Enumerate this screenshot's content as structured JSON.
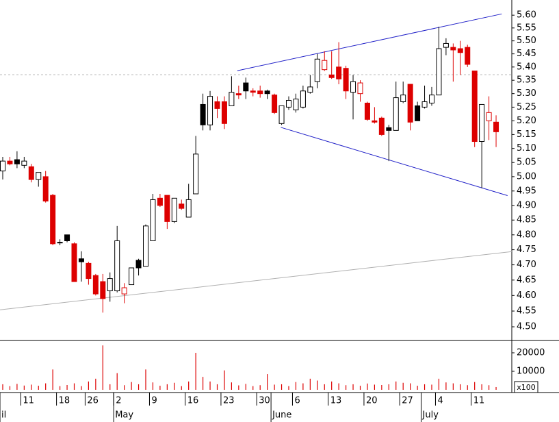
{
  "chart_data": [
    {
      "type": "candlestick",
      "log_scale": true,
      "categories": [
        null,
        null,
        null,
        "11",
        null,
        null,
        null,
        null,
        "18",
        null,
        null,
        null,
        "26",
        null,
        null,
        null,
        "2",
        null,
        null,
        null,
        null,
        "9",
        null,
        null,
        null,
        null,
        "16",
        null,
        null,
        null,
        null,
        "23",
        null,
        null,
        null,
        null,
        "30",
        null,
        null,
        null,
        null,
        "6",
        null,
        null,
        null,
        null,
        "13",
        null,
        null,
        null,
        null,
        "20",
        null,
        null,
        null,
        null,
        "27",
        null,
        null,
        null,
        null,
        "4",
        null,
        null,
        null,
        null,
        "11",
        null,
        null,
        null
      ],
      "months": [
        {
          "label": "il",
          "category": 0
        },
        {
          "label": "May",
          "category": 16
        },
        {
          "label": "June",
          "category": 38
        },
        {
          "label": "July",
          "category": 59
        }
      ],
      "open": [
        5.02,
        5.055,
        5.06,
        5.04,
        5.035,
        4.99,
        5.0,
        4.935,
        4.775,
        4.8,
        4.77,
        4.72,
        4.705,
        4.665,
        4.645,
        4.615,
        4.615,
        4.605,
        4.635,
        4.715,
        4.695,
        4.78,
        4.925,
        4.935,
        4.845,
        4.905,
        4.86,
        4.94,
        5.26,
        5.185,
        5.27,
        5.27,
        5.255,
        5.3,
        5.34,
        5.31,
        5.31,
        5.31,
        5.295,
        5.19,
        5.25,
        5.24,
        5.25,
        5.305,
        5.345,
        5.39,
        5.37,
        5.4,
        5.395,
        5.305,
        5.3,
        5.265,
        5.2,
        5.21,
        5.175,
        5.165,
        5.27,
        5.335,
        5.255,
        5.25,
        5.265,
        5.295,
        5.475,
        5.475,
        5.47,
        5.475,
        5.385,
        5.125,
        5.2,
        5.195
      ],
      "high": [
        5.07,
        5.07,
        5.09,
        5.07,
        5.045,
        5.015,
        5.02,
        4.94,
        4.785,
        4.8,
        4.775,
        4.745,
        4.71,
        4.67,
        4.67,
        4.675,
        4.83,
        4.64,
        4.69,
        4.72,
        4.835,
        4.94,
        4.94,
        4.935,
        4.925,
        4.92,
        4.975,
        5.145,
        5.3,
        5.31,
        5.29,
        5.29,
        5.365,
        5.33,
        5.36,
        5.32,
        5.33,
        5.315,
        5.3,
        5.255,
        5.29,
        5.3,
        5.33,
        5.37,
        5.45,
        5.46,
        5.46,
        5.495,
        5.405,
        5.37,
        5.35,
        5.27,
        5.25,
        5.215,
        5.185,
        5.345,
        5.345,
        5.335,
        5.27,
        5.33,
        5.325,
        5.555,
        5.51,
        5.49,
        5.5,
        5.485,
        5.385,
        5.26,
        5.29,
        5.22
      ],
      "low": [
        4.99,
        5.04,
        5.03,
        5.03,
        4.98,
        4.965,
        4.91,
        4.765,
        4.765,
        4.775,
        4.645,
        4.645,
        4.635,
        4.6,
        4.545,
        4.58,
        4.61,
        4.575,
        4.635,
        4.665,
        4.695,
        4.78,
        4.895,
        4.82,
        4.84,
        4.885,
        4.86,
        4.94,
        5.165,
        5.165,
        5.21,
        5.17,
        5.255,
        5.28,
        5.28,
        5.29,
        5.285,
        5.28,
        5.225,
        5.185,
        5.24,
        5.23,
        5.245,
        5.3,
        5.32,
        5.385,
        5.355,
        5.335,
        5.28,
        5.205,
        5.27,
        5.2,
        5.19,
        5.145,
        5.055,
        5.165,
        5.265,
        5.165,
        5.2,
        5.245,
        5.255,
        5.295,
        5.445,
        5.345,
        5.37,
        5.4,
        5.105,
        4.96,
        5.13,
        5.105
      ],
      "close": [
        5.055,
        5.045,
        5.045,
        5.055,
        4.99,
        5.015,
        4.915,
        4.77,
        4.775,
        4.78,
        4.645,
        4.71,
        4.655,
        4.605,
        4.59,
        4.655,
        4.78,
        4.625,
        4.69,
        4.69,
        4.83,
        4.92,
        4.9,
        4.845,
        4.925,
        4.89,
        4.92,
        5.08,
        5.185,
        5.29,
        5.245,
        5.19,
        5.305,
        5.295,
        5.31,
        5.305,
        5.3,
        5.3,
        5.23,
        5.255,
        5.275,
        5.28,
        5.31,
        5.325,
        5.43,
        5.425,
        5.36,
        5.355,
        5.31,
        5.345,
        5.34,
        5.205,
        5.195,
        5.15,
        5.165,
        5.285,
        5.295,
        5.195,
        5.2,
        5.27,
        5.295,
        5.47,
        5.49,
        5.465,
        5.455,
        5.41,
        5.125,
        5.26,
        5.23,
        5.16
      ],
      "up_color": "#ffffff",
      "down_color": "#dd0000",
      "hold_color": "#000000",
      "ylim": [
        4.457,
        5.66
      ],
      "yticks": [
        {
          "value": 4.5,
          "label": "4.50"
        },
        4.55,
        {
          "value": 4.6,
          "label": "4.60"
        },
        4.65,
        {
          "value": 4.7,
          "label": "4.70"
        },
        4.75,
        {
          "value": 4.8,
          "label": "4.80"
        },
        4.85,
        {
          "value": 4.9,
          "label": "4.90"
        },
        4.95,
        {
          "value": 5.0,
          "label": "5.00"
        },
        5.05,
        {
          "value": 5.1,
          "label": "5.10"
        },
        5.15,
        {
          "value": 5.2,
          "label": "5.20"
        },
        5.25,
        {
          "value": 5.3,
          "label": "5.30"
        },
        5.35,
        {
          "value": 5.4,
          "label": "5.40"
        },
        5.45,
        {
          "value": 5.5,
          "label": "5.50"
        },
        5.55,
        {
          "value": 5.6,
          "label": "5.60"
        }
      ],
      "trendlines": [
        {
          "color": "#2020c8",
          "x": [
            32.8,
            69.8
          ],
          "y": [
            5.386,
            5.605
          ]
        },
        {
          "color": "#2020c8",
          "x": [
            38.9,
            70.6
          ],
          "y": [
            5.176,
            4.934
          ]
        },
        {
          "color": "#b0b0b0",
          "x": [
            -0.38,
            71.2
          ],
          "y": [
            4.554,
            4.744
          ]
        }
      ],
      "hline": {
        "value": 5.371,
        "color": "#bbbbbb"
      }
    },
    {
      "type": "bar",
      "color": "#dd0000",
      "unit_label": "x100",
      "values": [
        3000,
        2000,
        3200,
        2300,
        2800,
        2200,
        3500,
        11000,
        2000,
        2600,
        3500,
        2000,
        4500,
        6000,
        24000,
        3000,
        9000,
        2500,
        4200,
        3000,
        11000,
        4000,
        2200,
        3000,
        3800,
        2000,
        4500,
        20000,
        7000,
        4500,
        3000,
        10500,
        4000,
        2400,
        3200,
        2000,
        2500,
        8500,
        2800,
        3000,
        2000,
        4200,
        3500,
        6000,
        5000,
        3000,
        4500,
        3500,
        2500,
        3000,
        2200,
        3400,
        2800,
        2600,
        3000,
        4500,
        3800,
        3500,
        2200,
        3000,
        2800,
        6000,
        4000,
        3500,
        3000,
        2500,
        4200,
        3000,
        2500,
        1500
      ],
      "ylim": [
        -1480,
        26300
      ],
      "yticks": [
        10000,
        20000
      ]
    }
  ]
}
